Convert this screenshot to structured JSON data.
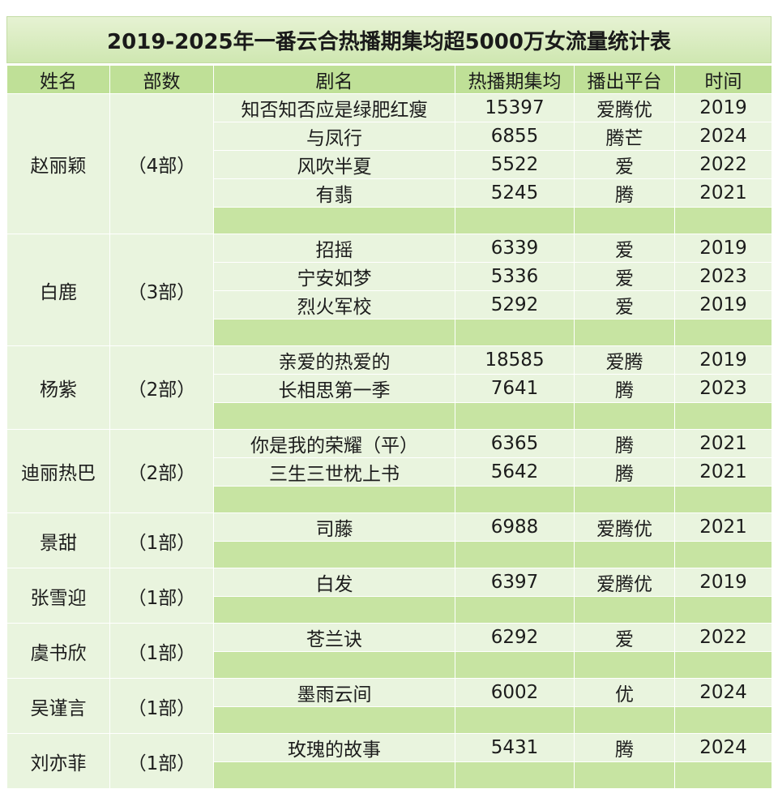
{
  "title": "2019-2025年一番云合热播期集均超5000万女流量统计表",
  "headers": [
    "姓名",
    "部数",
    "剧名",
    "热播期集均",
    "播出平台",
    "时间"
  ],
  "actresses": [
    {
      "name": "赵丽颖",
      "count": "（4部）",
      "dramas": [
        {
          "title": "知否知否应是绿肥红瘦",
          "avg": "15397",
          "platform": "爱腾优",
          "year": "2019"
        },
        {
          "title": "与凤行",
          "avg": "6855",
          "platform": "腾芒",
          "year": "2024"
        },
        {
          "title": "风吹半夏",
          "avg": "5522",
          "platform": "爱",
          "year": "2022"
        },
        {
          "title": "有翡",
          "avg": "5245",
          "platform": "腾",
          "year": "2021"
        }
      ]
    },
    {
      "name": "白鹿",
      "count": "（3部）",
      "dramas": [
        {
          "title": "招摇",
          "avg": "6339",
          "platform": "爱",
          "year": "2019"
        },
        {
          "title": "宁安如梦",
          "avg": "5336",
          "platform": "爱",
          "year": "2023"
        },
        {
          "title": "烈火军校",
          "avg": "5292",
          "platform": "爱",
          "year": "2019"
        }
      ]
    },
    {
      "name": "杨紫",
      "count": "（2部）",
      "dramas": [
        {
          "title": "亲爱的热爱的",
          "avg": "18585",
          "platform": "爱腾",
          "year": "2019"
        },
        {
          "title": "长相思第一季",
          "avg": "7641",
          "platform": "腾",
          "year": "2023"
        }
      ]
    },
    {
      "name": "迪丽热巴",
      "count": "（2部）",
      "dramas": [
        {
          "title": "你是我的荣耀（平）",
          "avg": "6365",
          "platform": "腾",
          "year": "2021"
        },
        {
          "title": "三生三世枕上书",
          "avg": "5642",
          "platform": "腾",
          "year": "2021"
        }
      ]
    },
    {
      "name": "景甜",
      "count": "（1部）",
      "dramas": [
        {
          "title": "司藤",
          "avg": "6988",
          "platform": "爱腾优",
          "year": "2021"
        }
      ]
    },
    {
      "name": "张雪迎",
      "count": "（1部）",
      "dramas": [
        {
          "title": "白发",
          "avg": "6397",
          "platform": "爱腾优",
          "year": "2019"
        }
      ]
    },
    {
      "name": "虞书欣",
      "count": "（1部）",
      "dramas": [
        {
          "title": "苍兰诀",
          "avg": "6292",
          "platform": "爱",
          "year": "2022"
        }
      ]
    },
    {
      "name": "吴谨言",
      "count": "（1部）",
      "dramas": [
        {
          "title": "墨雨云间",
          "avg": "6002",
          "platform": "优",
          "year": "2024"
        }
      ]
    },
    {
      "name": "刘亦菲",
      "count": "（1部）",
      "dramas": [
        {
          "title": "玫瑰的故事",
          "avg": "5431",
          "platform": "腾",
          "year": "2024"
        }
      ]
    }
  ]
}
